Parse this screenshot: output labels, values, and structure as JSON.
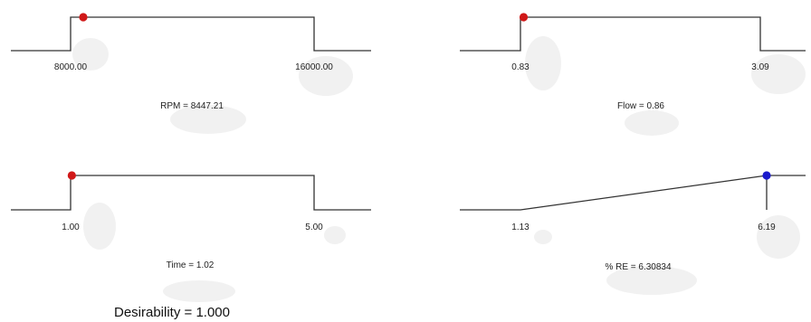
{
  "chart_data": [
    {
      "type": "line",
      "factor": "RPM",
      "shape": "step",
      "low": 8000.0,
      "high": 16000.0,
      "low_label": "8000.00",
      "high_label": "16000.00",
      "current": 8447.21,
      "caption": "RPM = 8447.21",
      "marker_color": "#d01818"
    },
    {
      "type": "line",
      "factor": "Flow",
      "shape": "step",
      "low": 0.83,
      "high": 3.09,
      "low_label": "0.83",
      "high_label": "3.09",
      "current": 0.86,
      "caption": "Flow = 0.86",
      "marker_color": "#d01818"
    },
    {
      "type": "line",
      "factor": "Time",
      "shape": "step",
      "low": 1.0,
      "high": 5.0,
      "low_label": "1.00",
      "high_label": "5.00",
      "current": 1.02,
      "caption": "Time = 1.02",
      "marker_color": "#d01818"
    },
    {
      "type": "line",
      "factor": "% RE",
      "shape": "ramp",
      "low": 1.13,
      "high": 6.19,
      "low_label": "1.13",
      "high_label": "6.19",
      "current": 6.30834,
      "caption": "% RE = 6.30834",
      "marker_color": "#1a1acc"
    }
  ],
  "summary": {
    "desirability_text": "Desirability = 1.000"
  }
}
